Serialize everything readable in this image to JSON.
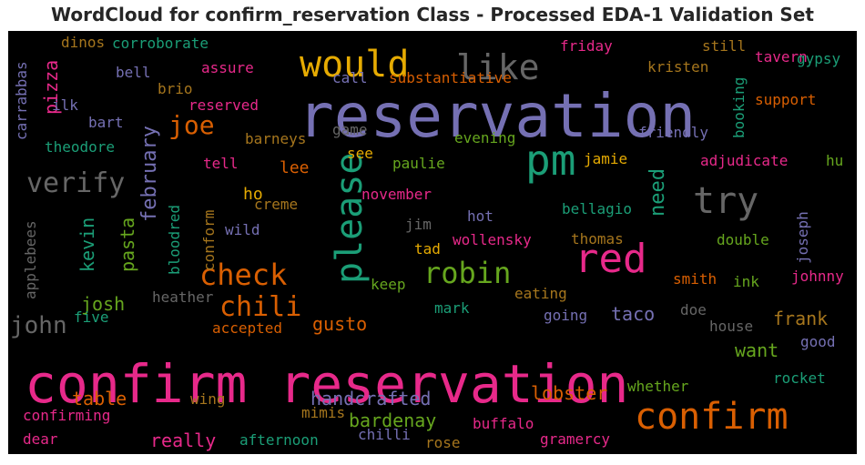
{
  "chart_data": {
    "type": "wordcloud",
    "title": "WordCloud for confirm_reservation Class - Processed EDA-1 Validation Set",
    "background": "#000000",
    "palette": {
      "pink": "#e7298a",
      "purple": "#7570b3",
      "teal": "#1b9e77",
      "orange": "#d95f02",
      "green": "#66a61e",
      "gold": "#e6ab02",
      "brown": "#a6761d",
      "gray": "#666666"
    },
    "words": [
      {
        "text": "confirm reservation",
        "color": "pink"
      },
      {
        "text": "reservation",
        "color": "purple"
      },
      {
        "text": "would",
        "color": "gold"
      },
      {
        "text": "like",
        "color": "gray"
      },
      {
        "text": "pm",
        "color": "teal"
      },
      {
        "text": "please",
        "color": "teal"
      },
      {
        "text": "try",
        "color": "gray"
      },
      {
        "text": "red",
        "color": "pink"
      },
      {
        "text": "confirm",
        "color": "orange"
      },
      {
        "text": "check",
        "color": "orange"
      },
      {
        "text": "robin",
        "color": "green"
      },
      {
        "text": "chili",
        "color": "orange"
      },
      {
        "text": "verify",
        "color": "gray"
      },
      {
        "text": "joe",
        "color": "orange"
      },
      {
        "text": "john",
        "color": "gray"
      },
      {
        "text": "february",
        "color": "purple"
      },
      {
        "text": "pizza",
        "color": "pink"
      },
      {
        "text": "need",
        "color": "teal"
      },
      {
        "text": "kevin",
        "color": "teal"
      },
      {
        "text": "pasta",
        "color": "green"
      },
      {
        "text": "josh",
        "color": "green"
      },
      {
        "text": "handcrafted",
        "color": "purple"
      },
      {
        "text": "bardenay",
        "color": "green"
      },
      {
        "text": "want",
        "color": "green"
      },
      {
        "text": "frank",
        "color": "brown"
      },
      {
        "text": "taco",
        "color": "purple"
      },
      {
        "text": "gusto",
        "color": "orange"
      },
      {
        "text": "lobster",
        "color": "orange"
      },
      {
        "text": "table",
        "color": "orange"
      },
      {
        "text": "really",
        "color": "pink"
      },
      {
        "text": "still",
        "color": "brown"
      },
      {
        "text": "assure",
        "color": "pink"
      },
      {
        "text": "bell",
        "color": "purple"
      },
      {
        "text": "lee",
        "color": "orange"
      },
      {
        "text": "ho",
        "color": "gold"
      },
      {
        "text": "five",
        "color": "teal"
      },
      {
        "text": "corroborate",
        "color": "teal"
      },
      {
        "text": "dinos",
        "color": "brown"
      },
      {
        "text": "carrabbas",
        "color": "purple"
      },
      {
        "text": "applebees",
        "color": "gray"
      },
      {
        "text": "theodore",
        "color": "teal"
      },
      {
        "text": "ilk",
        "color": "purple"
      },
      {
        "text": "bart",
        "color": "purple"
      },
      {
        "text": "brio",
        "color": "brown"
      },
      {
        "text": "reserved",
        "color": "pink"
      },
      {
        "text": "call",
        "color": "purple"
      },
      {
        "text": "substantiative",
        "color": "orange"
      },
      {
        "text": "friday",
        "color": "pink"
      },
      {
        "text": "tavern",
        "color": "pink"
      },
      {
        "text": "gypsy",
        "color": "teal"
      },
      {
        "text": "kristen",
        "color": "brown"
      },
      {
        "text": "booking",
        "color": "teal"
      },
      {
        "text": "support",
        "color": "orange"
      },
      {
        "text": "friendly",
        "color": "purple"
      },
      {
        "text": "game",
        "color": "gray"
      },
      {
        "text": "barneys",
        "color": "brown"
      },
      {
        "text": "evening",
        "color": "green"
      },
      {
        "text": "see",
        "color": "gold"
      },
      {
        "text": "paulie",
        "color": "green"
      },
      {
        "text": "tell",
        "color": "pink"
      },
      {
        "text": "jamie",
        "color": "gold"
      },
      {
        "text": "adjudicate",
        "color": "pink"
      },
      {
        "text": "hu",
        "color": "green"
      },
      {
        "text": "joseph",
        "color": "purple"
      },
      {
        "text": "november",
        "color": "pink"
      },
      {
        "text": "creme",
        "color": "brown"
      },
      {
        "text": "conform",
        "color": "brown"
      },
      {
        "text": "bloodred",
        "color": "teal"
      },
      {
        "text": "wild",
        "color": "purple"
      },
      {
        "text": "jim",
        "color": "gray"
      },
      {
        "text": "hot",
        "color": "purple"
      },
      {
        "text": "bellagio",
        "color": "teal"
      },
      {
        "text": "tad",
        "color": "gold"
      },
      {
        "text": "wollensky",
        "color": "pink"
      },
      {
        "text": "thomas",
        "color": "brown"
      },
      {
        "text": "double",
        "color": "green"
      },
      {
        "text": "smith",
        "color": "orange"
      },
      {
        "text": "johnny",
        "color": "pink"
      },
      {
        "text": "ink",
        "color": "green"
      },
      {
        "text": "keep",
        "color": "green"
      },
      {
        "text": "heather",
        "color": "gray"
      },
      {
        "text": "eating",
        "color": "brown"
      },
      {
        "text": "mark",
        "color": "teal"
      },
      {
        "text": "doe",
        "color": "gray"
      },
      {
        "text": "going",
        "color": "purple"
      },
      {
        "text": "accepted",
        "color": "orange"
      },
      {
        "text": "house",
        "color": "gray"
      },
      {
        "text": "good",
        "color": "purple"
      },
      {
        "text": "rocket",
        "color": "teal"
      },
      {
        "text": "whether",
        "color": "green"
      },
      {
        "text": "wing",
        "color": "brown"
      },
      {
        "text": "mimis",
        "color": "brown"
      },
      {
        "text": "confirming",
        "color": "pink"
      },
      {
        "text": "buffalo",
        "color": "pink"
      },
      {
        "text": "dear",
        "color": "pink"
      },
      {
        "text": "afternoon",
        "color": "teal"
      },
      {
        "text": "chilli",
        "color": "purple"
      },
      {
        "text": "rose",
        "color": "brown"
      },
      {
        "text": "gramercy",
        "color": "pink"
      }
    ]
  }
}
